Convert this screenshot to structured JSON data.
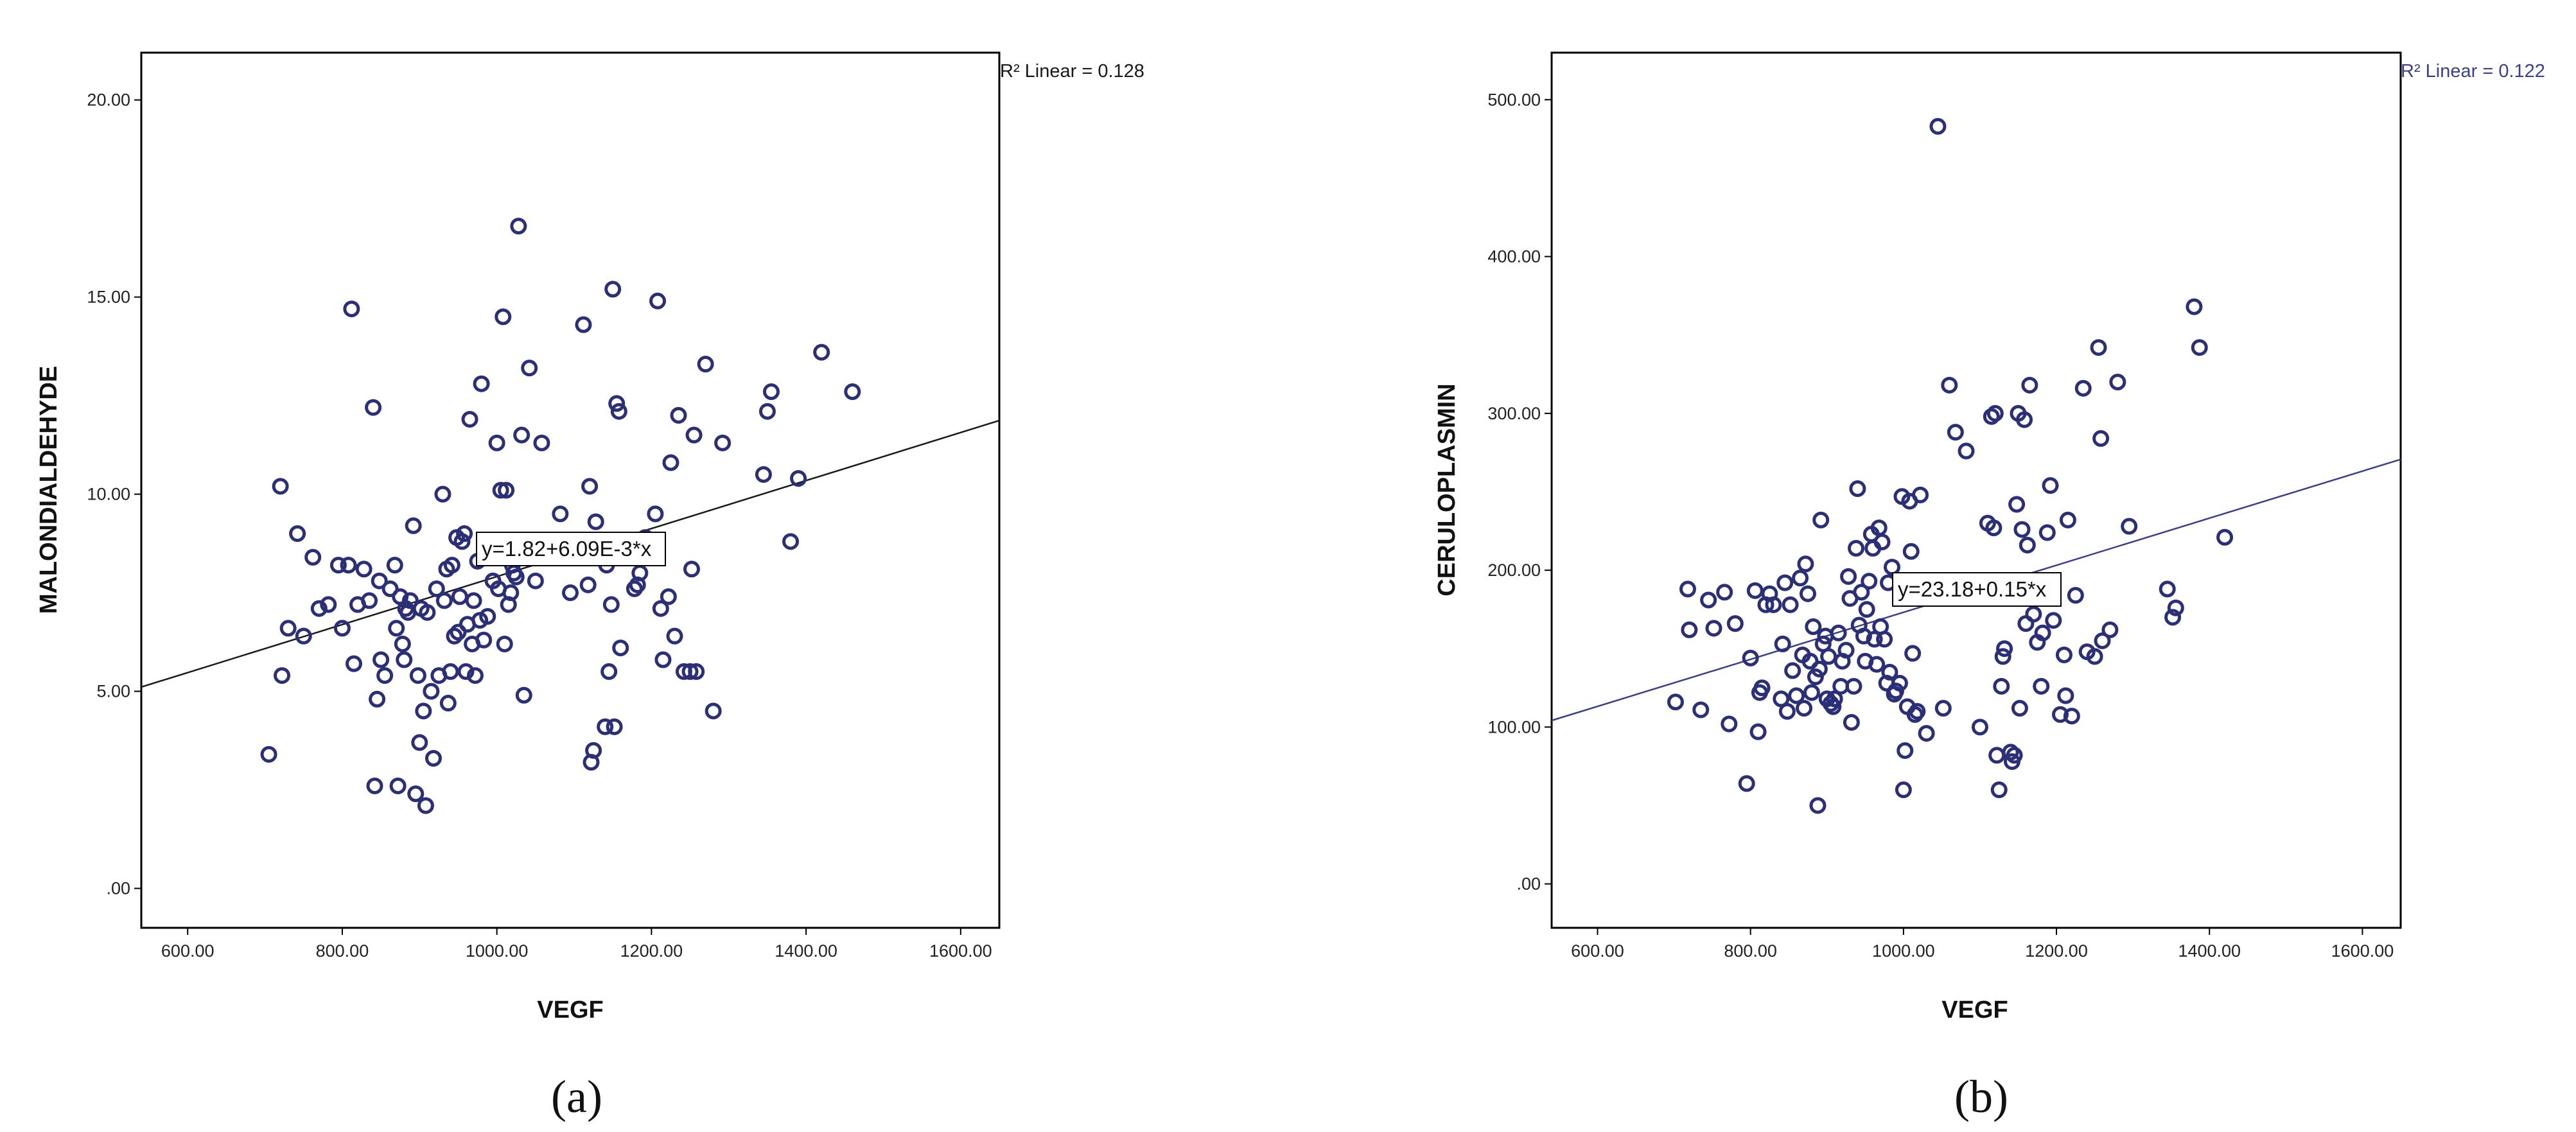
{
  "chart_data": [
    {
      "type": "scatter",
      "panel_label": "(a)",
      "xlabel": "VEGF",
      "ylabel": "MALONDIALDEHYDE",
      "xlim": [
        540,
        1650
      ],
      "ylim": [
        -1,
        21.2
      ],
      "xticks": [
        600,
        800,
        1000,
        1200,
        1400,
        1600
      ],
      "xtick_labels": [
        "600.00",
        "800.00",
        "1000.00",
        "1200.00",
        "1400.00",
        "1600.00"
      ],
      "yticks": [
        0,
        5,
        10,
        15,
        20
      ],
      "ytick_labels": [
        ".00",
        "5.00",
        "10.00",
        "15.00",
        "20.00"
      ],
      "fit": {
        "intercept": 1.82,
        "slope": 0.00609,
        "equation_label": "y=1.82+6.09E-3*x",
        "r2_label": "R² Linear = 0.128"
      },
      "colors": {
        "points": "#2b2f78",
        "line": "#1a1a1a",
        "r2": "#1a1a1a"
      },
      "points": [
        [
          705,
          3.4
        ],
        [
          720,
          10.2
        ],
        [
          722,
          5.4
        ],
        [
          730,
          6.6
        ],
        [
          742,
          9.0
        ],
        [
          750,
          6.4
        ],
        [
          762,
          8.4
        ],
        [
          770,
          7.1
        ],
        [
          782,
          7.2
        ],
        [
          795,
          8.2
        ],
        [
          800,
          6.6
        ],
        [
          808,
          8.2
        ],
        [
          812,
          14.7
        ],
        [
          815,
          5.7
        ],
        [
          820,
          7.2
        ],
        [
          828,
          8.1
        ],
        [
          835,
          7.3
        ],
        [
          840,
          12.2
        ],
        [
          842,
          2.6
        ],
        [
          845,
          4.8
        ],
        [
          848,
          7.8
        ],
        [
          850,
          5.8
        ],
        [
          855,
          5.4
        ],
        [
          862,
          7.6
        ],
        [
          868,
          8.2
        ],
        [
          870,
          6.6
        ],
        [
          872,
          2.6
        ],
        [
          875,
          7.4
        ],
        [
          878,
          6.2
        ],
        [
          880,
          5.8
        ],
        [
          882,
          7.1
        ],
        [
          885,
          7.0
        ],
        [
          888,
          7.3
        ],
        [
          892,
          9.2
        ],
        [
          895,
          2.4
        ],
        [
          898,
          5.4
        ],
        [
          900,
          3.7
        ],
        [
          902,
          7.1
        ],
        [
          905,
          4.5
        ],
        [
          908,
          2.1
        ],
        [
          910,
          7.0
        ],
        [
          915,
          5.0
        ],
        [
          918,
          3.3
        ],
        [
          922,
          7.6
        ],
        [
          925,
          5.4
        ],
        [
          930,
          10.0
        ],
        [
          932,
          7.3
        ],
        [
          935,
          8.1
        ],
        [
          937,
          4.7
        ],
        [
          940,
          5.5
        ],
        [
          942,
          8.2
        ],
        [
          945,
          6.4
        ],
        [
          948,
          8.9
        ],
        [
          950,
          6.5
        ],
        [
          952,
          7.4
        ],
        [
          955,
          8.8
        ],
        [
          958,
          9.0
        ],
        [
          960,
          5.5
        ],
        [
          962,
          6.7
        ],
        [
          965,
          11.9
        ],
        [
          968,
          6.2
        ],
        [
          970,
          7.3
        ],
        [
          972,
          5.4
        ],
        [
          975,
          8.3
        ],
        [
          978,
          6.8
        ],
        [
          980,
          12.8
        ],
        [
          983,
          6.3
        ],
        [
          988,
          6.9
        ],
        [
          995,
          7.8
        ],
        [
          1000,
          11.3
        ],
        [
          1002,
          7.6
        ],
        [
          1005,
          10.1
        ],
        [
          1008,
          14.5
        ],
        [
          1010,
          6.2
        ],
        [
          1012,
          10.1
        ],
        [
          1015,
          7.2
        ],
        [
          1018,
          7.5
        ],
        [
          1020,
          8.2
        ],
        [
          1022,
          8.0
        ],
        [
          1025,
          7.9
        ],
        [
          1028,
          16.8
        ],
        [
          1032,
          11.5
        ],
        [
          1035,
          4.9
        ],
        [
          1042,
          13.2
        ],
        [
          1050,
          7.8
        ],
        [
          1058,
          11.3
        ],
        [
          1082,
          9.5
        ],
        [
          1095,
          7.5
        ],
        [
          1105,
          8.5
        ],
        [
          1112,
          14.3
        ],
        [
          1118,
          7.7
        ],
        [
          1120,
          10.2
        ],
        [
          1122,
          3.2
        ],
        [
          1125,
          3.5
        ],
        [
          1128,
          9.3
        ],
        [
          1140,
          4.1
        ],
        [
          1142,
          8.2
        ],
        [
          1145,
          5.5
        ],
        [
          1148,
          7.2
        ],
        [
          1150,
          15.2
        ],
        [
          1152,
          4.1
        ],
        [
          1155,
          12.3
        ],
        [
          1158,
          12.1
        ],
        [
          1160,
          6.1
        ],
        [
          1168,
          8.8
        ],
        [
          1178,
          7.6
        ],
        [
          1182,
          7.7
        ],
        [
          1185,
          8.0
        ],
        [
          1192,
          8.9
        ],
        [
          1205,
          9.5
        ],
        [
          1208,
          14.9
        ],
        [
          1212,
          7.1
        ],
        [
          1215,
          5.8
        ],
        [
          1222,
          7.4
        ],
        [
          1225,
          10.8
        ],
        [
          1230,
          6.4
        ],
        [
          1235,
          12.0
        ],
        [
          1242,
          5.5
        ],
        [
          1250,
          5.5
        ],
        [
          1252,
          8.1
        ],
        [
          1255,
          11.5
        ],
        [
          1258,
          5.5
        ],
        [
          1270,
          13.3
        ],
        [
          1280,
          4.5
        ],
        [
          1292,
          11.3
        ],
        [
          1345,
          10.5
        ],
        [
          1350,
          12.1
        ],
        [
          1355,
          12.6
        ],
        [
          1380,
          8.8
        ],
        [
          1390,
          10.4
        ],
        [
          1420,
          13.6
        ],
        [
          1460,
          12.6
        ]
      ]
    },
    {
      "type": "scatter",
      "panel_label": "(b)",
      "xlabel": "VEGF",
      "ylabel": "CERULOPLASMIN",
      "xlim": [
        540,
        1650
      ],
      "ylim": [
        -28,
        530
      ],
      "xticks": [
        600,
        800,
        1000,
        1200,
        1400,
        1600
      ],
      "xtick_labels": [
        "600.00",
        "800.00",
        "1000.00",
        "1200.00",
        "1400.00",
        "1600.00"
      ],
      "yticks": [
        0,
        100,
        200,
        300,
        400,
        500
      ],
      "ytick_labels": [
        ".00",
        "100.00",
        "200.00",
        "300.00",
        "400.00",
        "500.00"
      ],
      "fit": {
        "intercept": 23.18,
        "slope": 0.15,
        "equation_label": "y=23.18+0.15*x",
        "r2_label": "R² Linear = 0.122"
      },
      "colors": {
        "points": "#2b2f78",
        "line": "#3a3f90",
        "r2": "#3a3f90"
      },
      "points": [
        [
          702,
          116
        ],
        [
          718,
          188
        ],
        [
          720,
          162
        ],
        [
          735,
          111
        ],
        [
          745,
          181
        ],
        [
          752,
          163
        ],
        [
          766,
          186
        ],
        [
          772,
          102
        ],
        [
          780,
          166
        ],
        [
          795,
          64
        ],
        [
          800,
          144
        ],
        [
          806,
          187
        ],
        [
          810,
          97
        ],
        [
          812,
          122
        ],
        [
          815,
          125
        ],
        [
          820,
          178
        ],
        [
          825,
          185
        ],
        [
          830,
          178
        ],
        [
          840,
          118
        ],
        [
          842,
          153
        ],
        [
          845,
          192
        ],
        [
          848,
          110
        ],
        [
          852,
          178
        ],
        [
          855,
          136
        ],
        [
          860,
          120
        ],
        [
          865,
          195
        ],
        [
          868,
          146
        ],
        [
          870,
          112
        ],
        [
          872,
          204
        ],
        [
          875,
          185
        ],
        [
          878,
          142
        ],
        [
          880,
          122
        ],
        [
          882,
          164
        ],
        [
          885,
          132
        ],
        [
          888,
          50
        ],
        [
          890,
          137
        ],
        [
          892,
          232
        ],
        [
          895,
          153
        ],
        [
          898,
          158
        ],
        [
          900,
          118
        ],
        [
          902,
          145
        ],
        [
          905,
          115
        ],
        [
          908,
          113
        ],
        [
          910,
          118
        ],
        [
          915,
          160
        ],
        [
          918,
          126
        ],
        [
          920,
          142
        ],
        [
          925,
          149
        ],
        [
          928,
          196
        ],
        [
          930,
          182
        ],
        [
          932,
          103
        ],
        [
          935,
          126
        ],
        [
          938,
          214
        ],
        [
          940,
          252
        ],
        [
          942,
          165
        ],
        [
          945,
          186
        ],
        [
          948,
          158
        ],
        [
          950,
          142
        ],
        [
          952,
          175
        ],
        [
          955,
          193
        ],
        [
          958,
          223
        ],
        [
          960,
          214
        ],
        [
          962,
          156
        ],
        [
          965,
          140
        ],
        [
          968,
          227
        ],
        [
          970,
          164
        ],
        [
          972,
          218
        ],
        [
          975,
          156
        ],
        [
          978,
          128
        ],
        [
          980,
          192
        ],
        [
          982,
          135
        ],
        [
          985,
          202
        ],
        [
          988,
          121
        ],
        [
          990,
          123
        ],
        [
          995,
          128
        ],
        [
          998,
          247
        ],
        [
          1000,
          60
        ],
        [
          1002,
          85
        ],
        [
          1005,
          113
        ],
        [
          1008,
          244
        ],
        [
          1010,
          212
        ],
        [
          1012,
          147
        ],
        [
          1015,
          108
        ],
        [
          1018,
          110
        ],
        [
          1022,
          248
        ],
        [
          1030,
          96
        ],
        [
          1045,
          483
        ],
        [
          1052,
          112
        ],
        [
          1060,
          318
        ],
        [
          1068,
          288
        ],
        [
          1082,
          276
        ],
        [
          1100,
          100
        ],
        [
          1110,
          230
        ],
        [
          1115,
          298
        ],
        [
          1118,
          227
        ],
        [
          1120,
          300
        ],
        [
          1122,
          82
        ],
        [
          1125,
          60
        ],
        [
          1128,
          126
        ],
        [
          1130,
          145
        ],
        [
          1132,
          150
        ],
        [
          1140,
          84
        ],
        [
          1142,
          78
        ],
        [
          1145,
          82
        ],
        [
          1148,
          242
        ],
        [
          1150,
          300
        ],
        [
          1152,
          112
        ],
        [
          1155,
          226
        ],
        [
          1158,
          296
        ],
        [
          1160,
          166
        ],
        [
          1162,
          216
        ],
        [
          1165,
          318
        ],
        [
          1170,
          172
        ],
        [
          1175,
          154
        ],
        [
          1180,
          126
        ],
        [
          1182,
          160
        ],
        [
          1188,
          224
        ],
        [
          1192,
          254
        ],
        [
          1196,
          168
        ],
        [
          1205,
          108
        ],
        [
          1210,
          146
        ],
        [
          1212,
          120
        ],
        [
          1215,
          232
        ],
        [
          1220,
          107
        ],
        [
          1225,
          184
        ],
        [
          1235,
          316
        ],
        [
          1240,
          148
        ],
        [
          1250,
          145
        ],
        [
          1255,
          342
        ],
        [
          1258,
          284
        ],
        [
          1260,
          155
        ],
        [
          1270,
          162
        ],
        [
          1280,
          320
        ],
        [
          1295,
          228
        ],
        [
          1345,
          188
        ],
        [
          1352,
          170
        ],
        [
          1356,
          176
        ],
        [
          1380,
          368
        ],
        [
          1387,
          342
        ],
        [
          1420,
          221
        ]
      ]
    }
  ]
}
